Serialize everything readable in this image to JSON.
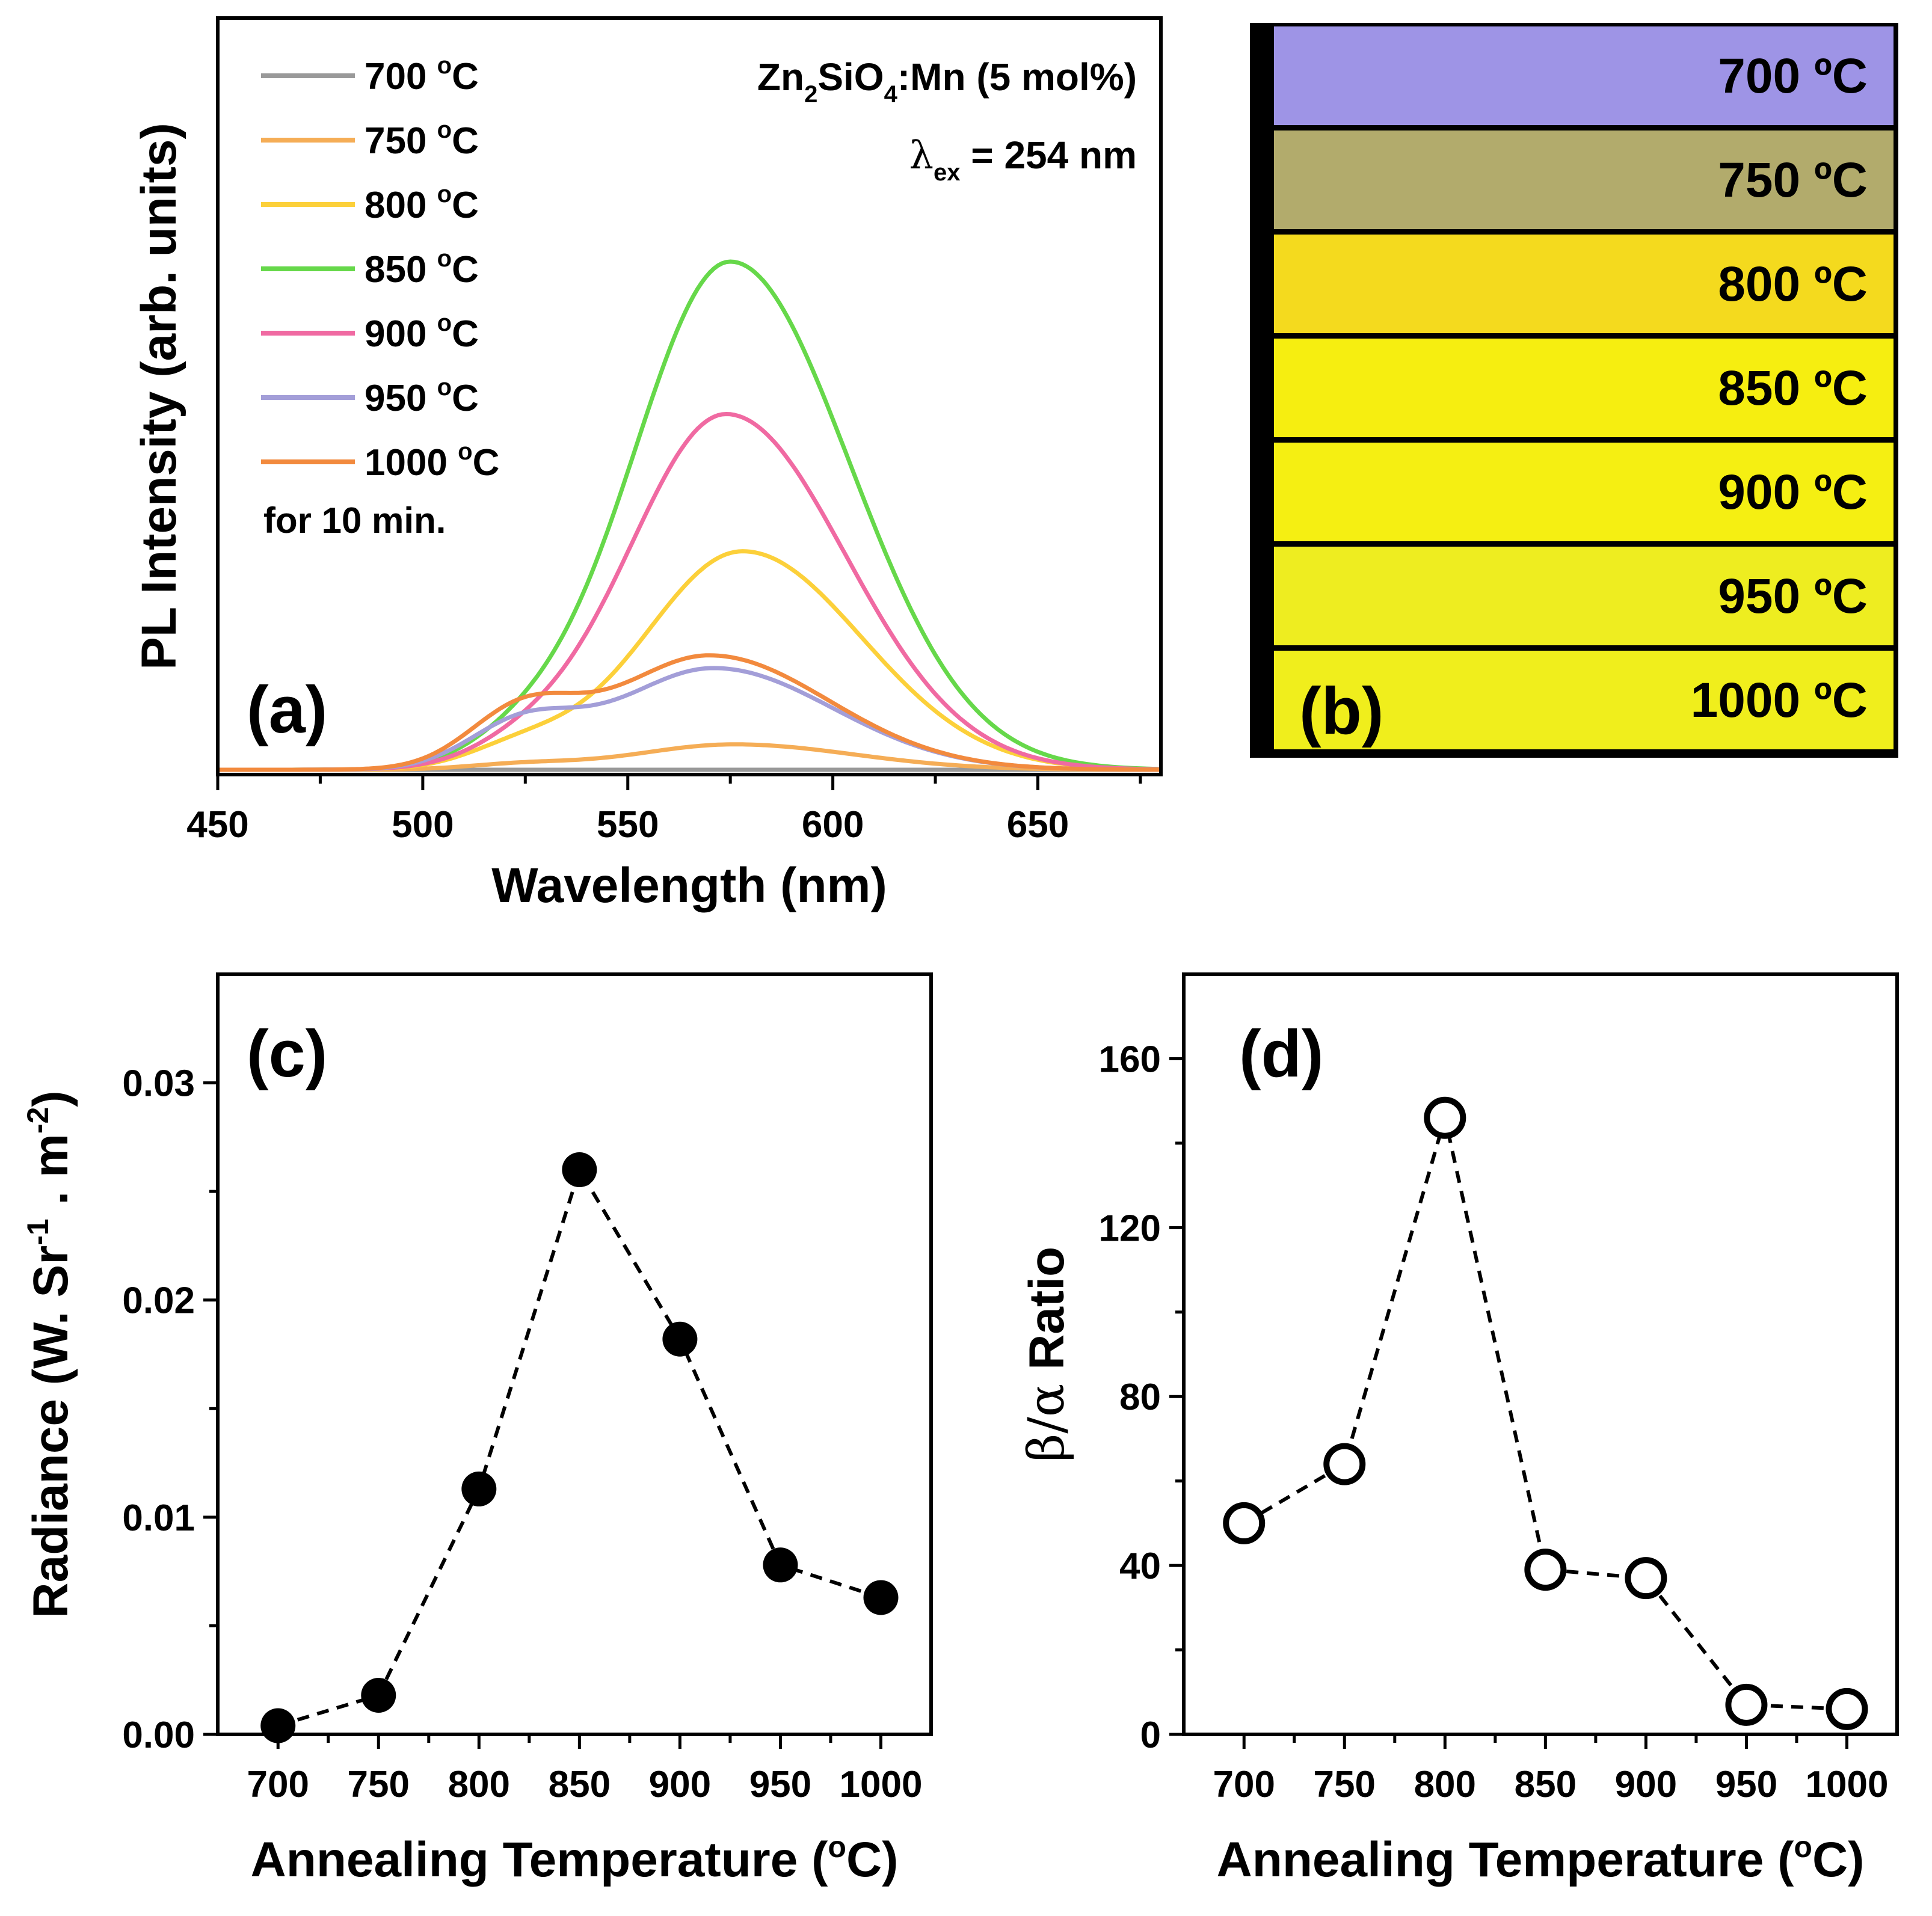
{
  "panel_a": {
    "label": "(a)",
    "legend_title": "for 10 min.",
    "material": {
      "pre": "Zn",
      "sub1": "2",
      "mid": "SiO",
      "sub2": "4",
      "post": ":Mn (5 mol%)"
    },
    "excitation": {
      "symbol": "λ",
      "sub": "ex",
      "text": " = 254 nm"
    }
  },
  "panel_b": {
    "label": "(b)",
    "strips": [
      {
        "text": "700 ºC",
        "color": "#9e94e6"
      },
      {
        "text": "750 ºC",
        "color": "#b2ab6c"
      },
      {
        "text": "800 ºC",
        "color": "#f4da1e"
      },
      {
        "text": "850 ºC",
        "color": "#f6ee10"
      },
      {
        "text": "900 ºC",
        "color": "#f5ef12"
      },
      {
        "text": "950 ºC",
        "color": "#eeed20"
      },
      {
        "text": "1000 ºC",
        "color": "#f0ee1c"
      }
    ]
  },
  "panel_c": {
    "label": "(c)"
  },
  "panel_d": {
    "label": "(d)"
  },
  "chart_data": [
    {
      "type": "line",
      "panel": "a",
      "xlabel": "Wavelength (nm)",
      "ylabel": "PL Intensity (arb. units)",
      "xlim": [
        450,
        680
      ],
      "ylim": [
        0,
        1.0
      ],
      "xticks": [
        450,
        500,
        550,
        600,
        650
      ],
      "series": [
        {
          "name": "700 ºC",
          "legend": {
            "value": "700 ",
            "sup": "o",
            "unit": "C"
          },
          "color": "#999999",
          "peak": 575,
          "amp": 0.0,
          "shoulder": 0.0
        },
        {
          "name": "750 ºC",
          "legend": {
            "value": "750 ",
            "sup": "o",
            "unit": "C"
          },
          "color": "#f5ad56",
          "peak": 576,
          "amp": 0.05,
          "shoulder": 0.01
        },
        {
          "name": "800 ºC",
          "legend": {
            "value": "800 ",
            "sup": "o",
            "unit": "C"
          },
          "color": "#fcd03a",
          "peak": 578,
          "amp": 0.43,
          "shoulder": 0.04
        },
        {
          "name": "850 ºC",
          "legend": {
            "value": "850 ",
            "sup": "o",
            "unit": "C"
          },
          "color": "#66d84a",
          "peak": 575,
          "amp": 1.0,
          "shoulder": 0.04
        },
        {
          "name": "900 ºC",
          "legend": {
            "value": "900 ",
            "sup": "o",
            "unit": "C"
          },
          "color": "#f06aa2",
          "peak": 574,
          "amp": 0.7,
          "shoulder": 0.03
        },
        {
          "name": "950 ºC",
          "legend": {
            "value": "950 ",
            "sup": "o",
            "unit": "C"
          },
          "color": "#a39ed8",
          "peak": 571,
          "amp": 0.2,
          "shoulder": 0.082
        },
        {
          "name": "1000 ºC",
          "legend": {
            "value": "1000 ",
            "sup": "o",
            "unit": "C"
          },
          "color": "#f28a3e",
          "peak": 570,
          "amp": 0.225,
          "shoulder": 0.105
        }
      ]
    },
    {
      "type": "scatter",
      "panel": "c",
      "marker": "filled-circle",
      "line": "dashed",
      "xlabel": "Annealing Temperature (ºC)",
      "xlabel_parts": {
        "main": "Annealing Temperature (",
        "sup": "o",
        "end": "C)"
      },
      "ylabel": "Radiance (W. Sr-1 . m-2)",
      "ylabel_parts": {
        "main": "Radiance (W. Sr",
        "sup1": "-1",
        "mid": " . m",
        "sup2": "-2",
        "end": ")"
      },
      "xlim": [
        670,
        1025
      ],
      "ylim": [
        0,
        0.035
      ],
      "xticks": [
        700,
        750,
        800,
        850,
        900,
        950,
        1000
      ],
      "yticks": [
        0.0,
        0.01,
        0.02,
        0.03
      ],
      "ytick_labels": [
        "0.00",
        "0.01",
        "0.02",
        "0.03"
      ],
      "x": [
        700,
        750,
        800,
        850,
        900,
        950,
        1000
      ],
      "y": [
        0.0004,
        0.0018,
        0.0113,
        0.026,
        0.0182,
        0.0078,
        0.0063
      ]
    },
    {
      "type": "scatter",
      "panel": "d",
      "marker": "open-circle",
      "line": "dashed",
      "xlabel": "Annealing Temperature (ºC)",
      "xlabel_parts": {
        "main": "Annealing Temperature (",
        "sup": "o",
        "end": "C)"
      },
      "ylabel": "β/α Ratio",
      "ylabel_parts": {
        "greek": "β/α",
        "end": " Ratio"
      },
      "xlim": [
        670,
        1025
      ],
      "ylim": [
        0,
        180
      ],
      "xticks": [
        700,
        750,
        800,
        850,
        900,
        950,
        1000
      ],
      "yticks": [
        0,
        40,
        80,
        120,
        160
      ],
      "ytick_labels": [
        "0",
        "40",
        "80",
        "120",
        "160"
      ],
      "x": [
        700,
        750,
        800,
        850,
        900,
        950,
        1000
      ],
      "y": [
        50,
        64,
        146,
        39,
        37,
        7,
        6
      ]
    }
  ]
}
